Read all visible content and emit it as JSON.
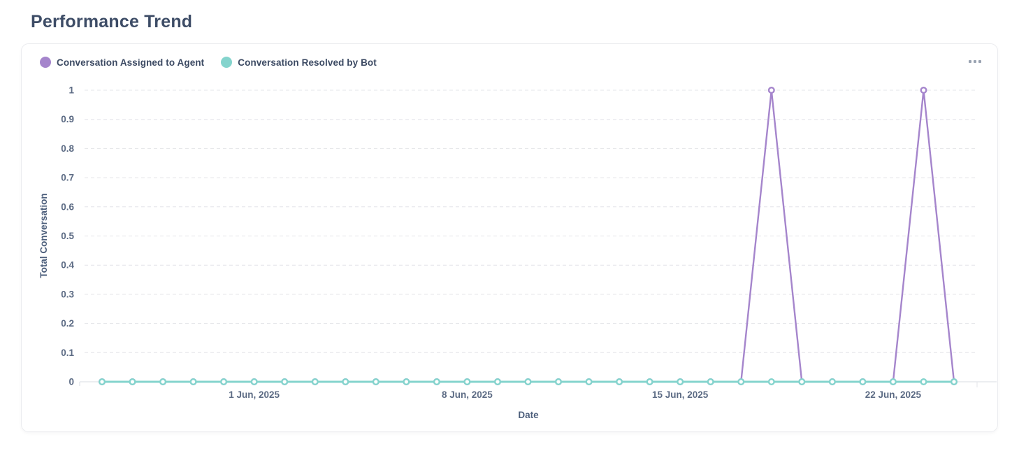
{
  "page": {
    "title": "Performance Trend"
  },
  "card": {
    "menu_icon": "ellipsis"
  },
  "chart_data": {
    "type": "line",
    "title": "",
    "xlabel": "Date",
    "ylabel": "Total Conversation",
    "ylim": [
      0,
      1
    ],
    "y_ticks": [
      0,
      0.1,
      0.2,
      0.3,
      0.4,
      0.5,
      0.6,
      0.7,
      0.8,
      0.9,
      1
    ],
    "grid": true,
    "legend_position": "top-left",
    "categories": [
      "27 May, 2025",
      "28 May, 2025",
      "29 May, 2025",
      "30 May, 2025",
      "31 May, 2025",
      "1 Jun, 2025",
      "2 Jun, 2025",
      "3 Jun, 2025",
      "4 Jun, 2025",
      "5 Jun, 2025",
      "6 Jun, 2025",
      "7 Jun, 2025",
      "8 Jun, 2025",
      "9 Jun, 2025",
      "10 Jun, 2025",
      "11 Jun, 2025",
      "12 Jun, 2025",
      "13 Jun, 2025",
      "14 Jun, 2025",
      "15 Jun, 2025",
      "16 Jun, 2025",
      "17 Jun, 2025",
      "18 Jun, 2025",
      "19 Jun, 2025",
      "20 Jun, 2025",
      "21 Jun, 2025",
      "22 Jun, 2025",
      "23 Jun, 2025",
      "24 Jun, 2025"
    ],
    "x_ticks": [
      {
        "index": 5,
        "label": "1 Jun, 2025"
      },
      {
        "index": 12,
        "label": "8 Jun, 2025"
      },
      {
        "index": 19,
        "label": "15 Jun, 2025"
      },
      {
        "index": 26,
        "label": "22 Jun, 2025"
      }
    ],
    "series": [
      {
        "name": "Conversation Assigned to Agent",
        "color": "#a585cc",
        "values": [
          0,
          0,
          0,
          0,
          0,
          0,
          0,
          0,
          0,
          0,
          0,
          0,
          0,
          0,
          0,
          0,
          0,
          0,
          0,
          0,
          0,
          0,
          1,
          0,
          0,
          0,
          0,
          1,
          0
        ]
      },
      {
        "name": "Conversation Resolved by Bot",
        "color": "#84d4cd",
        "values": [
          0,
          0,
          0,
          0,
          0,
          0,
          0,
          0,
          0,
          0,
          0,
          0,
          0,
          0,
          0,
          0,
          0,
          0,
          0,
          0,
          0,
          0,
          0,
          0,
          0,
          0,
          0,
          0,
          0
        ]
      }
    ]
  }
}
